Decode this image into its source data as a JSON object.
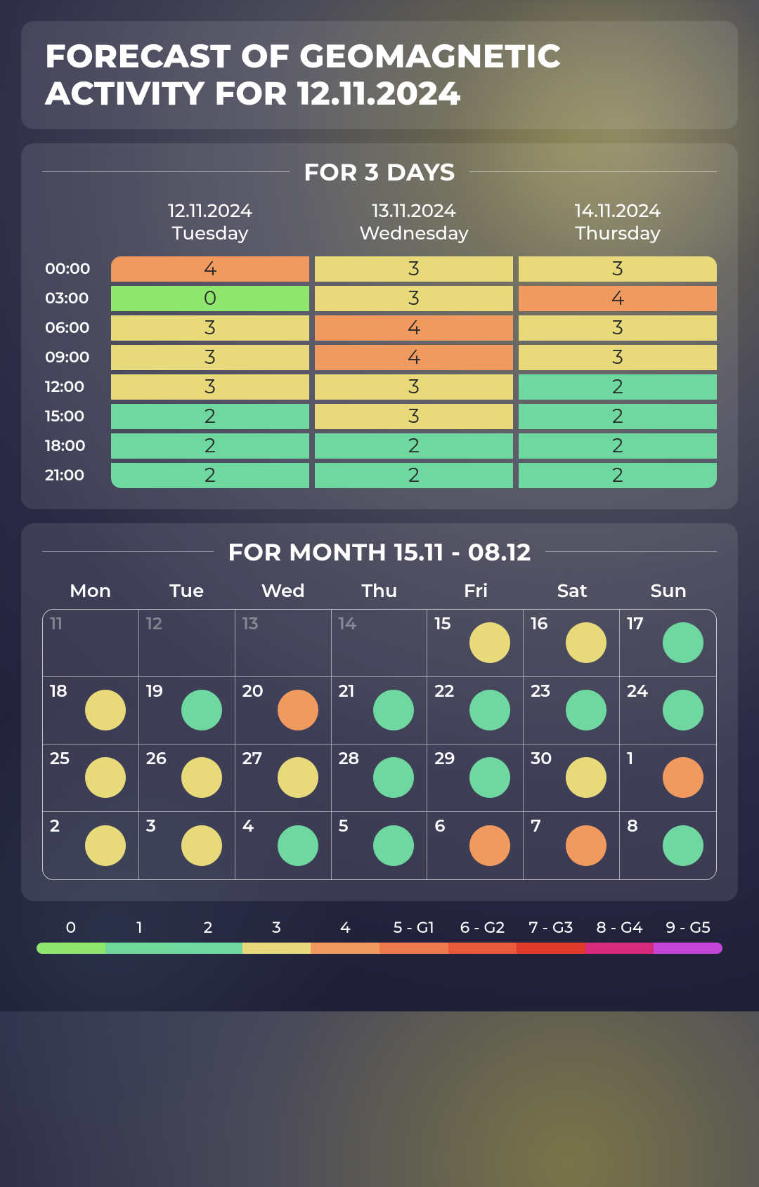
{
  "title": "FORECAST OF GEOMAGNETIC ACTIVITY FOR 12.11.2024",
  "kp_colors": {
    "0": "#8fe66f",
    "1": "#6fd89a",
    "2": "#6ed8a0",
    "3": "#e8d97a",
    "4": "#f19a60",
    "5": "#ef7a4e",
    "6": "#e85a3a",
    "7": "#e03a2a",
    "8": "#d62a7a",
    "9": "#c346d6"
  },
  "threeday": {
    "section_title": "FOR 3 DAYS",
    "hours": [
      "00:00",
      "03:00",
      "06:00",
      "09:00",
      "12:00",
      "15:00",
      "18:00",
      "21:00"
    ],
    "days": [
      {
        "date": "12.11.2024",
        "weekday": "Tuesday",
        "kp": [
          4,
          0,
          3,
          3,
          3,
          2,
          2,
          2
        ]
      },
      {
        "date": "13.11.2024",
        "weekday": "Wednesday",
        "kp": [
          3,
          3,
          4,
          4,
          3,
          3,
          2,
          2
        ]
      },
      {
        "date": "14.11.2024",
        "weekday": "Thursday",
        "kp": [
          3,
          4,
          3,
          3,
          2,
          2,
          2,
          2
        ]
      }
    ]
  },
  "month": {
    "section_title": "FOR MONTH 15.11 - 08.12",
    "weekdays": [
      "Mon",
      "Tue",
      "Wed",
      "Thu",
      "Fri",
      "Sat",
      "Sun"
    ],
    "cells": [
      {
        "day": "11",
        "inactive": true
      },
      {
        "day": "12",
        "inactive": true
      },
      {
        "day": "13",
        "inactive": true
      },
      {
        "day": "14",
        "inactive": true
      },
      {
        "day": "15",
        "color": "#e8d97a"
      },
      {
        "day": "16",
        "color": "#e8d97a"
      },
      {
        "day": "17",
        "color": "#6ed8a0"
      },
      {
        "day": "18",
        "color": "#e8d97a"
      },
      {
        "day": "19",
        "color": "#6ed8a0"
      },
      {
        "day": "20",
        "color": "#f19a60"
      },
      {
        "day": "21",
        "color": "#6ed8a0"
      },
      {
        "day": "22",
        "color": "#6ed8a0"
      },
      {
        "day": "23",
        "color": "#6ed8a0"
      },
      {
        "day": "24",
        "color": "#6ed8a0"
      },
      {
        "day": "25",
        "color": "#e8d97a"
      },
      {
        "day": "26",
        "color": "#e8d97a"
      },
      {
        "day": "27",
        "color": "#e8d97a"
      },
      {
        "day": "28",
        "color": "#6ed8a0"
      },
      {
        "day": "29",
        "color": "#6ed8a0"
      },
      {
        "day": "30",
        "color": "#e8d97a"
      },
      {
        "day": "1",
        "color": "#f19a60"
      },
      {
        "day": "2",
        "color": "#e8d97a"
      },
      {
        "day": "3",
        "color": "#e8d97a"
      },
      {
        "day": "4",
        "color": "#6ed8a0"
      },
      {
        "day": "5",
        "color": "#6ed8a0"
      },
      {
        "day": "6",
        "color": "#f19a60"
      },
      {
        "day": "7",
        "color": "#f19a60"
      },
      {
        "day": "8",
        "color": "#6ed8a0"
      }
    ]
  },
  "legend": {
    "labels": [
      "0",
      "1",
      "2",
      "3",
      "4",
      "5 - G1",
      "6 - G2",
      "7 - G3",
      "8 - G4",
      "9 - G5"
    ],
    "colors": [
      "#8fe66f",
      "#6fd89a",
      "#6ed8a0",
      "#e8d97a",
      "#f19a60",
      "#ef7a4e",
      "#e85a3a",
      "#e03a2a",
      "#d62a7a",
      "#c346d6"
    ]
  }
}
